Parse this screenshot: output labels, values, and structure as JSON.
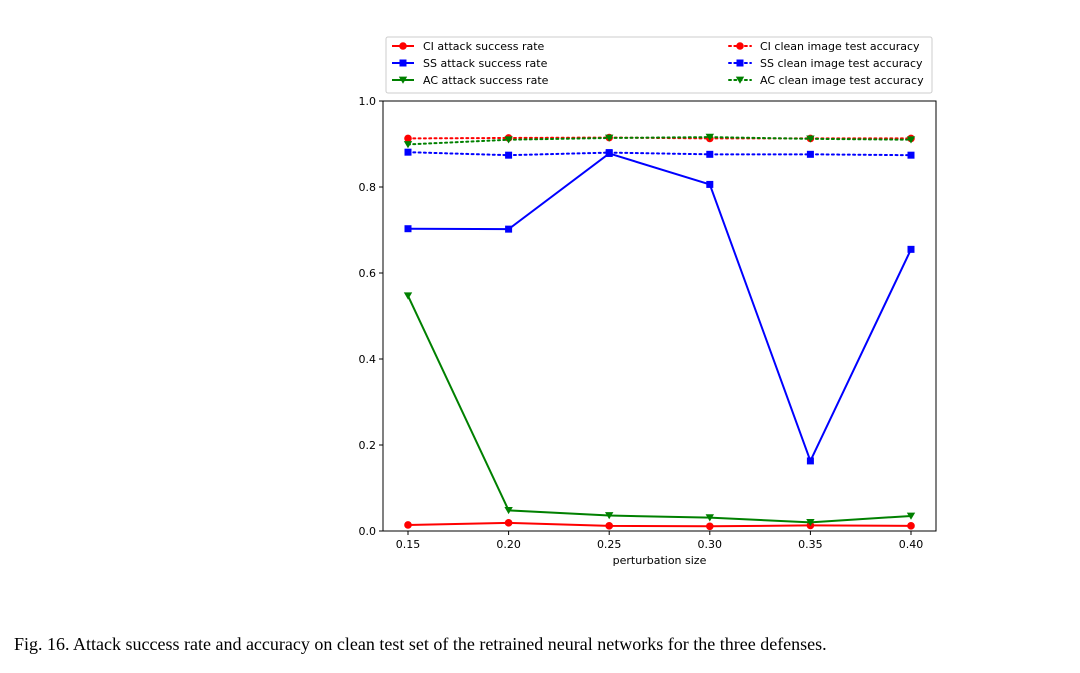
{
  "caption": "Fig. 16.  Attack success rate and accuracy on clean test set of the retrained neural networks for the three defenses.",
  "chart_data": {
    "type": "line",
    "title": "",
    "xlabel": "perturbation size",
    "ylabel": "",
    "x": [
      0.15,
      0.2,
      0.25,
      0.3,
      0.35,
      0.4
    ],
    "x_tick_labels": [
      "0.15",
      "0.20",
      "0.25",
      "0.30",
      "0.35",
      "0.40"
    ],
    "ylim": [
      0.0,
      1.0
    ],
    "y_ticks": [
      0.0,
      0.2,
      0.4,
      0.6,
      0.8,
      1.0
    ],
    "y_tick_labels": [
      "0.0",
      "0.2",
      "0.4",
      "0.6",
      "0.8",
      "1.0"
    ],
    "grid": false,
    "legend_position": "top",
    "series": [
      {
        "name": "CI attack success rate",
        "color": "#ff0000",
        "marker": "circle",
        "style": "solid",
        "values": [
          0.014,
          0.019,
          0.012,
          0.011,
          0.013,
          0.012
        ]
      },
      {
        "name": "SS attack success rate",
        "color": "#0000ff",
        "marker": "square",
        "style": "solid",
        "values": [
          0.703,
          0.702,
          0.878,
          0.806,
          0.163,
          0.655
        ]
      },
      {
        "name": "AC attack success rate",
        "color": "#008000",
        "marker": "triangle-down",
        "style": "solid",
        "values": [
          0.547,
          0.048,
          0.036,
          0.031,
          0.02,
          0.035
        ]
      },
      {
        "name": "CI clean image test accuracy",
        "color": "#ff0000",
        "marker": "circle",
        "style": "dotted",
        "values": [
          0.913,
          0.914,
          0.915,
          0.913,
          0.913,
          0.913
        ]
      },
      {
        "name": "SS clean image test accuracy",
        "color": "#0000ff",
        "marker": "square",
        "style": "dotted",
        "values": [
          0.881,
          0.874,
          0.88,
          0.876,
          0.876,
          0.874
        ]
      },
      {
        "name": "AC clean image test accuracy",
        "color": "#008000",
        "marker": "triangle-down",
        "style": "dotted",
        "values": [
          0.899,
          0.91,
          0.914,
          0.916,
          0.912,
          0.91
        ]
      }
    ]
  }
}
